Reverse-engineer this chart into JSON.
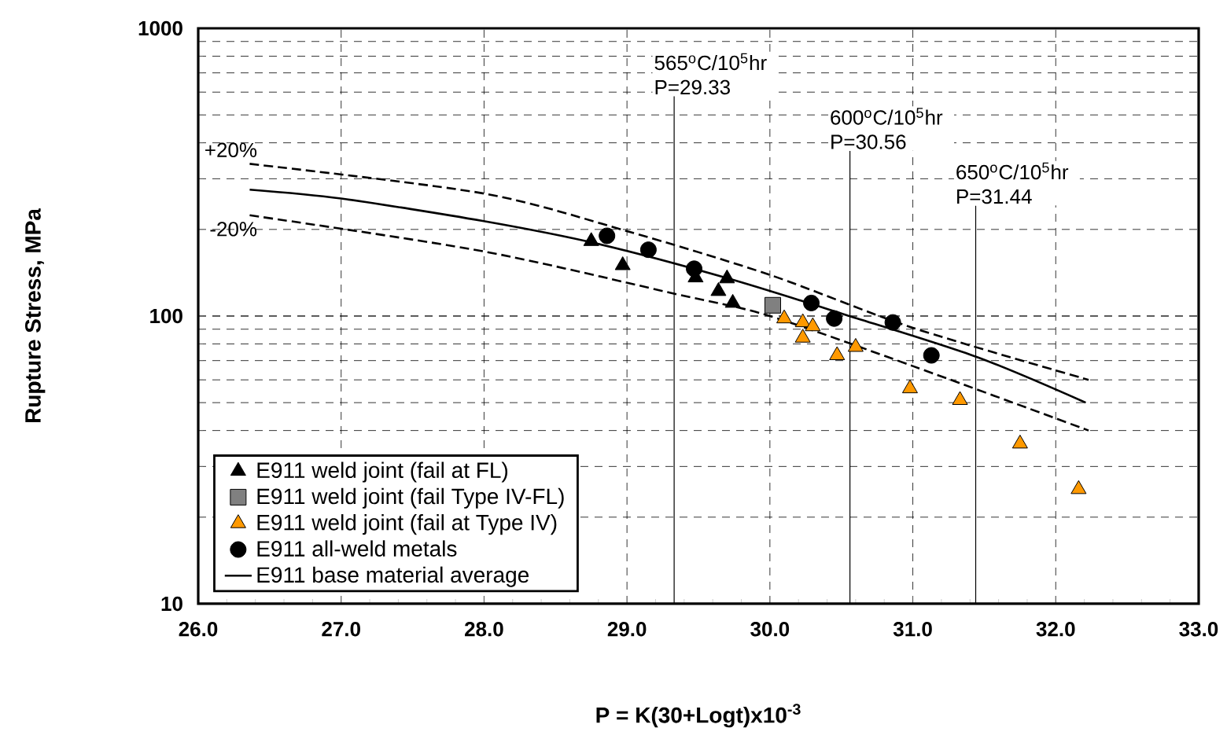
{
  "chart_data": {
    "type": "scatter",
    "xlabel": "P = K(30+Logt)x10$^{-3}$",
    "ylabel": "Rupture Stress, MPa",
    "xlim": [
      26,
      33
    ],
    "ylim": [
      10,
      1000
    ],
    "log": "y",
    "grid": true,
    "legend": "bottom left",
    "xticks": [
      {
        "value": 26,
        "label": "26.0"
      },
      {
        "value": 27,
        "label": "27.0"
      },
      {
        "value": 28,
        "label": "28.0"
      },
      {
        "value": 29,
        "label": "29.0"
      },
      {
        "value": 30,
        "label": "30.0"
      },
      {
        "value": 31,
        "label": "31.0"
      },
      {
        "value": 32,
        "label": "32.0"
      },
      {
        "value": 33,
        "label": "33.0"
      }
    ],
    "yticks": [
      10,
      100,
      1000
    ],
    "series": [
      {
        "name": "E911 weld joint (fail at FL)",
        "marker": "triangle",
        "color": "#000000",
        "x": [
          28.75,
          28.97,
          29.48,
          29.7,
          29.64,
          29.74
        ],
        "values": [
          182,
          150,
          136,
          135,
          122,
          111
        ]
      },
      {
        "name": "E911 weld joint (fail Type IV-FL)",
        "marker": "square",
        "color": "#808080",
        "x": [
          30.02
        ],
        "values": [
          109
        ]
      },
      {
        "name": "E911 weld joint (fail at Type IV)",
        "marker": "triangle",
        "color": "#ff9900",
        "x": [
          30.1,
          30.23,
          30.3,
          30.23,
          30.47,
          30.6,
          30.98,
          31.33,
          31.75,
          32.16
        ],
        "values": [
          98,
          95,
          92,
          84,
          73,
          78,
          56,
          51,
          36,
          25
        ]
      },
      {
        "name": "E911 all-weld metals",
        "marker": "circle",
        "color": "#000000",
        "x": [
          28.86,
          29.15,
          29.47,
          30.29,
          30.45,
          30.86,
          31.13
        ],
        "values": [
          190,
          170,
          146,
          111,
          98,
          95,
          73
        ]
      },
      {
        "name": "E911 base material average",
        "type": "line",
        "marker": "none",
        "line_style": "solid",
        "color": "#000000",
        "x": [
          26.36,
          27.0,
          27.99,
          28.8,
          29.71,
          30.53,
          31.45,
          32.21
        ],
        "values": [
          275,
          256,
          214,
          178,
          135,
          101,
          72,
          50
        ]
      },
      {
        "name": "+20%",
        "type": "line",
        "marker": "none",
        "line_style": "dashed",
        "color": "#000000",
        "x": [
          26.36,
          27.99,
          28.99,
          30.0,
          31.0,
          32.23
        ],
        "values": [
          338,
          267,
          198,
          139,
          91,
          60
        ]
      },
      {
        "name": "-20%",
        "type": "line",
        "marker": "none",
        "line_style": "dashed",
        "color": "#000000",
        "x": [
          26.36,
          27.99,
          29.35,
          30.0,
          31.0,
          32.23
        ],
        "values": [
          224,
          168,
          119,
          100,
          67,
          40
        ]
      }
    ],
    "ref_lines": [
      {
        "axis": "x",
        "value": 29.33,
        "label": "565$^{o}$C/10$^{5}$hr P=29.33"
      },
      {
        "axis": "x",
        "value": 30.56,
        "label": "600$^{o}$C/10$^{5}$hr P=30.56"
      },
      {
        "axis": "x",
        "value": 31.44,
        "label": "650$^{o}$C/10$^{5}$hr P=31.44"
      }
    ]
  }
}
